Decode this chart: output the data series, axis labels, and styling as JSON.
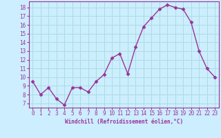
{
  "x": [
    0,
    1,
    2,
    3,
    4,
    5,
    6,
    7,
    8,
    9,
    10,
    11,
    12,
    13,
    14,
    15,
    16,
    17,
    18,
    19,
    20,
    21,
    22,
    23
  ],
  "y": [
    9.5,
    8.0,
    8.8,
    7.5,
    6.8,
    8.8,
    8.8,
    8.3,
    9.5,
    10.3,
    12.2,
    12.7,
    10.4,
    13.5,
    15.8,
    16.8,
    17.8,
    18.3,
    18.0,
    17.8,
    16.3,
    13.0,
    11.0,
    10.0
  ],
  "line_color": "#993399",
  "marker": "D",
  "markersize": 2.5,
  "linewidth": 1.0,
  "xlabel": "Windchill (Refroidissement éolien,°C)",
  "xlim": [
    -0.5,
    23.5
  ],
  "ylim": [
    6.5,
    18.7
  ],
  "yticks": [
    7,
    8,
    9,
    10,
    11,
    12,
    13,
    14,
    15,
    16,
    17,
    18
  ],
  "xticks": [
    0,
    1,
    2,
    3,
    4,
    5,
    6,
    7,
    8,
    9,
    10,
    11,
    12,
    13,
    14,
    15,
    16,
    17,
    18,
    19,
    20,
    21,
    22,
    23
  ],
  "bg_color": "#cceeff",
  "grid_color": "#aadddd",
  "tick_color": "#993399",
  "label_color": "#993399",
  "spine_color": "#993399",
  "tick_fontsize": 5.5,
  "label_fontsize": 5.5
}
